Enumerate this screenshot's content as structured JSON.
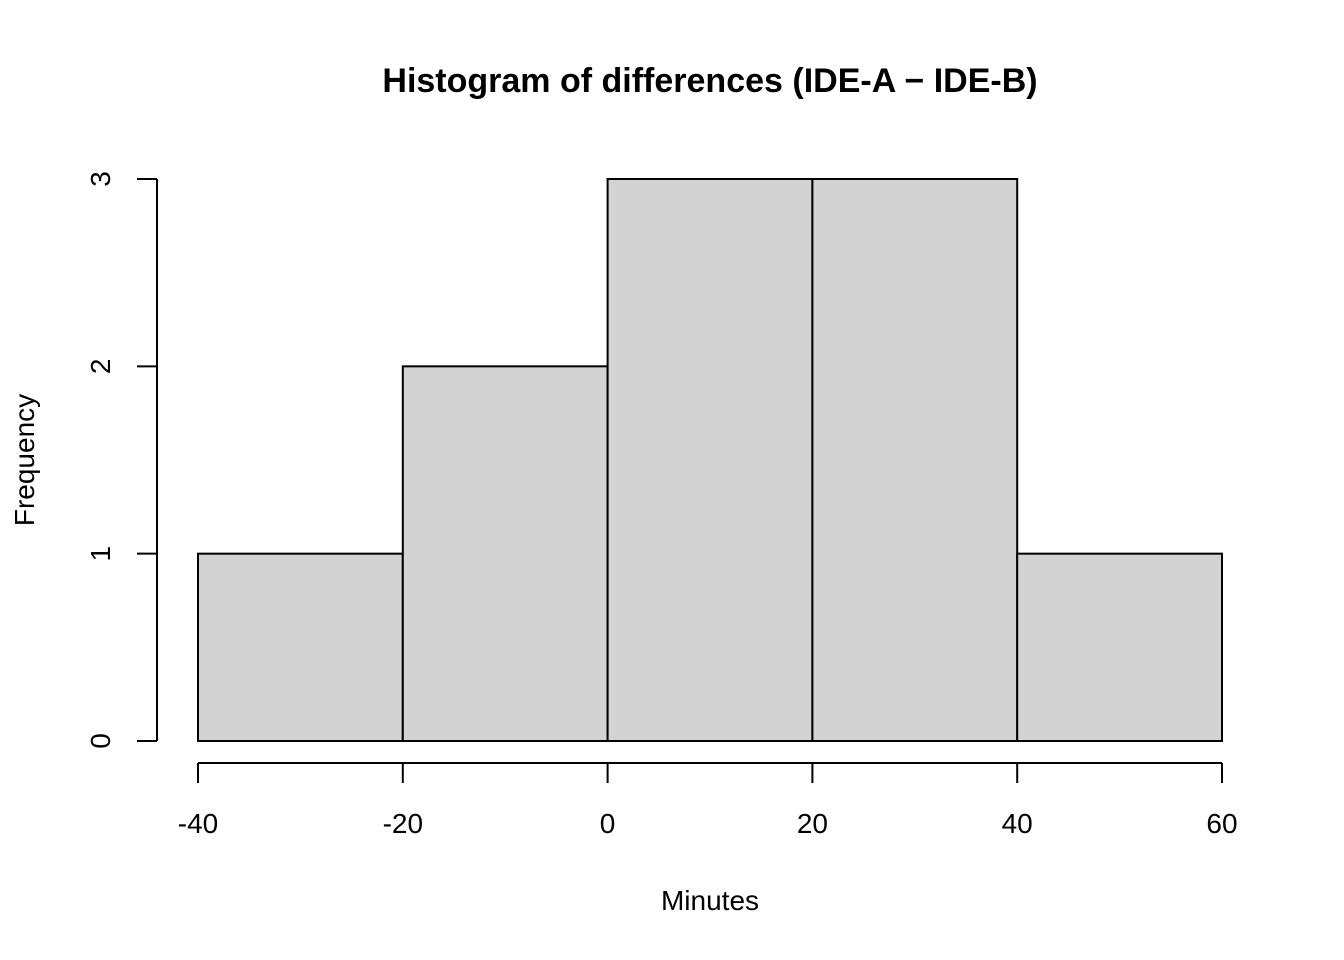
{
  "chart_data": {
    "type": "bar",
    "subtype": "histogram",
    "title": "Histogram of differences (IDE-A − IDE-B)",
    "xlabel": "Minutes",
    "ylabel": "Frequency",
    "bins": [
      {
        "from": -40,
        "to": -20,
        "count": 1
      },
      {
        "from": -20,
        "to": 0,
        "count": 2
      },
      {
        "from": 0,
        "to": 20,
        "count": 3
      },
      {
        "from": 20,
        "to": 40,
        "count": 3
      },
      {
        "from": 40,
        "to": 60,
        "count": 1
      }
    ],
    "xlim": [
      -40,
      60
    ],
    "ylim": [
      0,
      3
    ],
    "xticks": [
      "-40",
      "-20",
      "0",
      "20",
      "40",
      "60"
    ],
    "yticks": [
      "0",
      "1",
      "2",
      "3"
    ],
    "grid": false,
    "colors": {
      "bar_fill": "#d3d3d3",
      "bar_stroke": "#000000"
    }
  }
}
